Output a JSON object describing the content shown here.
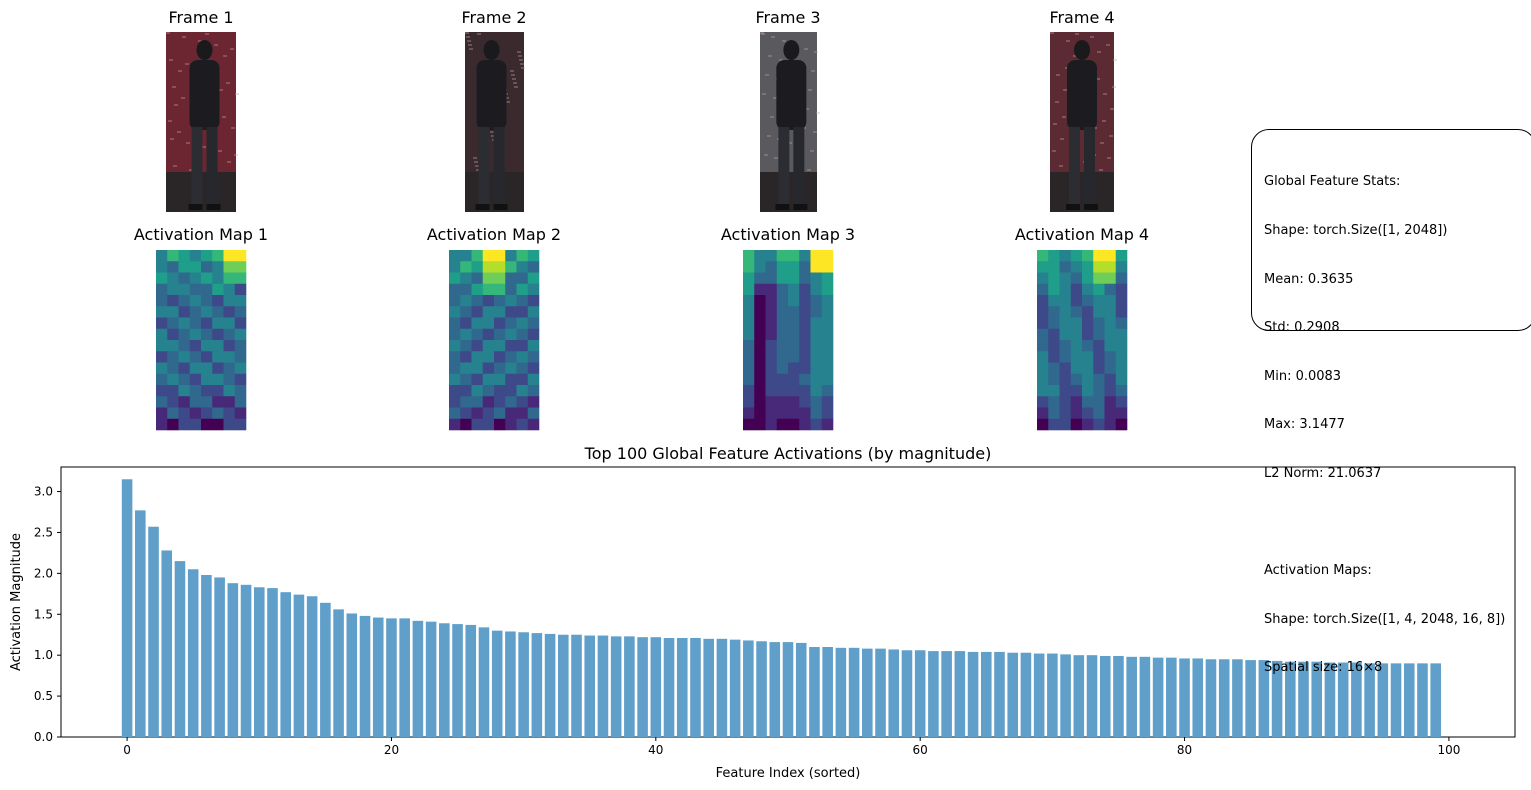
{
  "frames": [
    {
      "title": "Frame 1"
    },
    {
      "title": "Frame 2"
    },
    {
      "title": "Frame 3"
    },
    {
      "title": "Frame 4"
    }
  ],
  "activation_maps": [
    {
      "title": "Activation Map 1"
    },
    {
      "title": "Activation Map 2"
    },
    {
      "title": "Activation Map 3"
    },
    {
      "title": "Activation Map 4"
    }
  ],
  "colormap": "viridis",
  "stats": {
    "lines": [
      "Global Feature Stats:",
      "Shape: torch.Size([1, 2048])",
      "Mean: 0.3635",
      "Std: 0.2908",
      "Min: 0.0083",
      "Max: 3.1477",
      "L2 Norm: 21.0637",
      "",
      "Activation Maps:",
      "Shape: torch.Size([1, 4, 2048, 16, 8])",
      "Spatial size: 16×8"
    ]
  },
  "chart_data": {
    "type": "bar",
    "title": "Top 100 Global Feature Activations (by magnitude)",
    "xlabel": "Feature Index (sorted)",
    "ylabel": "Activation Magnitude",
    "xlim": [
      -5,
      105
    ],
    "ylim": [
      0,
      3.3
    ],
    "xticks": [
      0,
      20,
      40,
      60,
      80,
      100
    ],
    "yticks": [
      0.0,
      0.5,
      1.0,
      1.5,
      2.0,
      2.5,
      3.0
    ],
    "bar_color": "#5f9fca",
    "grid": false,
    "values": [
      3.15,
      2.77,
      2.57,
      2.28,
      2.15,
      2.05,
      1.98,
      1.95,
      1.88,
      1.86,
      1.83,
      1.82,
      1.77,
      1.74,
      1.72,
      1.64,
      1.56,
      1.51,
      1.48,
      1.46,
      1.45,
      1.45,
      1.42,
      1.41,
      1.39,
      1.38,
      1.37,
      1.34,
      1.3,
      1.29,
      1.28,
      1.27,
      1.26,
      1.25,
      1.25,
      1.24,
      1.24,
      1.23,
      1.23,
      1.22,
      1.22,
      1.21,
      1.21,
      1.21,
      1.2,
      1.2,
      1.19,
      1.18,
      1.17,
      1.16,
      1.16,
      1.15,
      1.1,
      1.1,
      1.09,
      1.09,
      1.08,
      1.08,
      1.07,
      1.06,
      1.06,
      1.05,
      1.05,
      1.05,
      1.04,
      1.04,
      1.04,
      1.03,
      1.03,
      1.02,
      1.02,
      1.01,
      1.0,
      1.0,
      0.99,
      0.99,
      0.98,
      0.98,
      0.97,
      0.97,
      0.96,
      0.96,
      0.95,
      0.95,
      0.95,
      0.94,
      0.94,
      0.93,
      0.92,
      0.92,
      0.92,
      0.91,
      0.91,
      0.91,
      0.9,
      0.9,
      0.9,
      0.9,
      0.9,
      0.9
    ]
  }
}
